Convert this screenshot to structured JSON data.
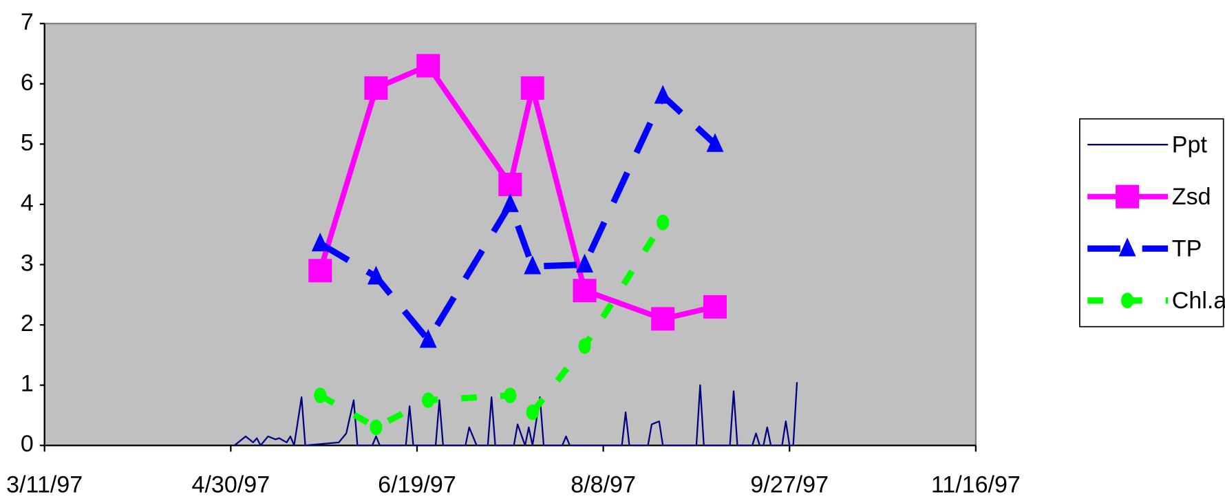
{
  "chart_data": {
    "type": "line",
    "x": [
      "5/24/97",
      "6/8/97",
      "6/22/97",
      "7/14/97",
      "7/20/97",
      "8/3/97",
      "8/24/97",
      "9/7/97"
    ],
    "xlim": [
      "3/11/97",
      "11/16/97"
    ],
    "xticks": [
      "3/11/97",
      "4/30/97",
      "6/19/97",
      "8/8/97",
      "9/27/97",
      "11/16/97"
    ],
    "ylim": [
      0,
      7
    ],
    "yticks": [
      0,
      1,
      2,
      3,
      4,
      5,
      6,
      7
    ],
    "legend": "right",
    "series": [
      {
        "name": "Ppt",
        "color": "#000080",
        "line_style": "solid",
        "marker": "none",
        "x": [
          "5/1/97",
          "5/4/97",
          "5/6/97",
          "5/7/97",
          "5/8/97",
          "5/10/97",
          "5/12/97",
          "5/13/97",
          "5/15/97",
          "5/16/97",
          "5/17/97",
          "5/19/97",
          "5/20/97",
          "5/29/97",
          "5/31/97",
          "6/2/97",
          "6/3/97",
          "6/7/97",
          "6/8/97",
          "6/9/97",
          "6/16/97",
          "6/17/97",
          "6/18/97",
          "6/24/97",
          "6/25/97",
          "6/26/97",
          "7/2/97",
          "7/3/97",
          "7/5/97",
          "7/8/97",
          "7/9/97",
          "7/10/97",
          "7/15/97",
          "7/16/97",
          "7/18/97",
          "7/19/97",
          "7/20/97",
          "7/22/97",
          "7/23/97",
          "7/28/97",
          "7/29/97",
          "7/30/97",
          "8/13/97",
          "8/14/97",
          "8/15/97",
          "8/20/97",
          "8/21/97",
          "8/23/97",
          "8/24/97",
          "9/2/97",
          "9/3/97",
          "9/4/97",
          "9/11/97",
          "9/12/97",
          "9/13/97",
          "9/17/97",
          "9/18/97",
          "9/19/97",
          "9/20/97",
          "9/21/97",
          "9/22/97",
          "9/25/97",
          "9/26/97",
          "9/27/97",
          "9/28/97",
          "9/29/97"
        ],
        "values": [
          0,
          0.15,
          0.05,
          0.12,
          0,
          0.15,
          0.1,
          0.12,
          0.05,
          0.15,
          0,
          0.8,
          0,
          0.05,
          0.2,
          0.75,
          0,
          0,
          0.15,
          0,
          0,
          0.65,
          0,
          0,
          0.75,
          0,
          0,
          0.3,
          0,
          0,
          0.8,
          0,
          0,
          0.35,
          0,
          0.3,
          0,
          0.8,
          0,
          0,
          0.15,
          0,
          0,
          0.55,
          0,
          0,
          0.35,
          0.4,
          0,
          0,
          1.0,
          0,
          0,
          0.9,
          0,
          0,
          0.2,
          0,
          0,
          0.3,
          0,
          0,
          0.4,
          0,
          0,
          1.05
        ]
      },
      {
        "name": "Zsd",
        "color": "#ff00ff",
        "line_style": "solid",
        "marker": "square",
        "values": [
          2.9,
          5.93,
          6.3,
          4.33,
          5.93,
          2.57,
          2.1,
          2.3
        ]
      },
      {
        "name": "TP",
        "color": "#0000ff",
        "line_style": "dashed",
        "marker": "triangle",
        "values": [
          3.35,
          2.8,
          1.75,
          4.0,
          2.97,
          3.0,
          5.8,
          5.0
        ]
      },
      {
        "name": "Chl.a",
        "color": "#00ff00",
        "line_style": "dotted",
        "marker": "circle",
        "values": [
          0.83,
          0.3,
          0.75,
          0.83,
          0.55,
          1.65,
          3.7,
          null
        ]
      }
    ]
  }
}
